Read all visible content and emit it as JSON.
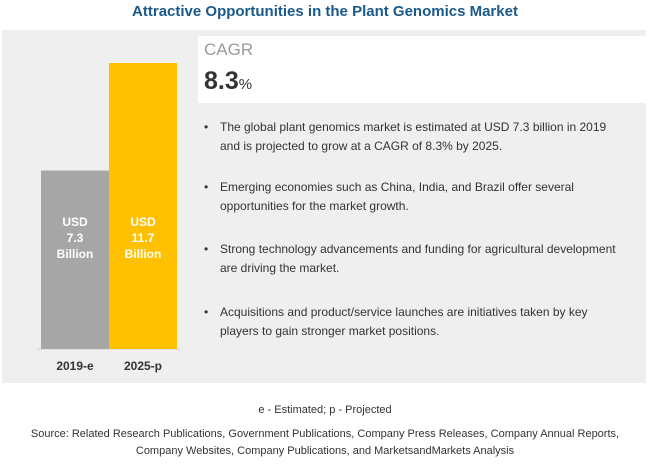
{
  "title": "Attractive Opportunities in the Plant Genomics Market",
  "cagr": {
    "label": "CAGR",
    "value": "8.3",
    "unit": "%"
  },
  "bullets": [
    "The global plant genomics market is estimated at USD 7.3 billion in 2019 and is projected to grow at a CAGR of 8.3% by 2025.",
    "Emerging economies such as China, India, and Brazil offer several opportunities for the market growth.",
    "Strong technology advancements and funding for agricultural development are driving the market.",
    "Acquisitions and product/service launches are initiatives taken by key players to gain stronger market positions."
  ],
  "footnote": "e - Estimated; p - Projected",
  "source": "Source: Related Research Publications, Government Publications, Company Press Releases, Company Annual Reports, Company Websites, Company Publications, and MarketsandMarkets Analysis",
  "chart_data": {
    "type": "bar",
    "categories": [
      "2019-e",
      "2025-p"
    ],
    "values": [
      7.3,
      11.7
    ],
    "unit": "USD Billion",
    "data_labels": [
      [
        "USD",
        "7.3",
        "Billion"
      ],
      [
        "USD",
        "11.7",
        "Billion"
      ]
    ],
    "colors": [
      "#a6a6a6",
      "#ffc000"
    ],
    "grid": false,
    "legend": "none"
  }
}
